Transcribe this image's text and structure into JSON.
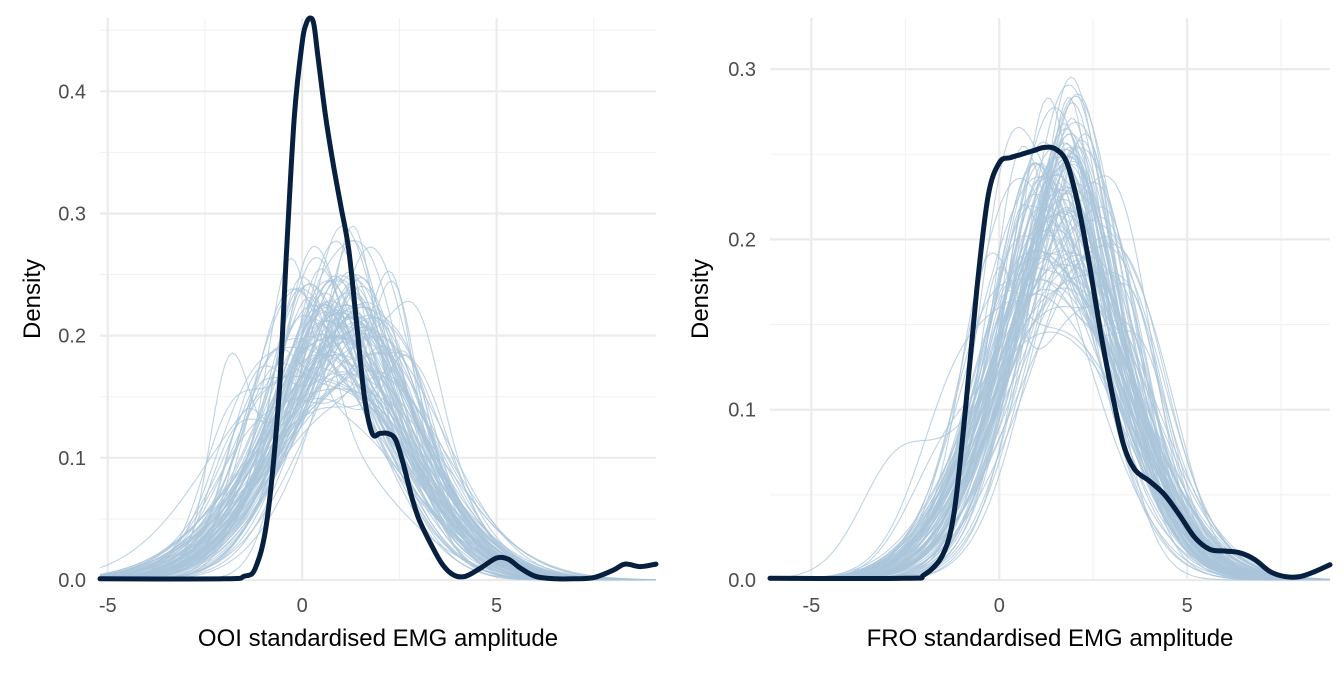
{
  "chart_data": [
    {
      "type": "line",
      "title": "",
      "xlabel": "OOI standardised EMG amplitude",
      "ylabel": "Density",
      "xlim": [
        -5.2,
        9.1
      ],
      "ylim": [
        0,
        0.46
      ],
      "x_ticks": [
        -5,
        0,
        5
      ],
      "x_tick_labels": [
        "-5",
        "0",
        "5"
      ],
      "y_ticks": [
        0,
        0.1,
        0.2,
        0.3,
        0.4
      ],
      "y_tick_labels": [
        "0.0",
        "0.1",
        "0.2",
        "0.3",
        "0.4"
      ],
      "grid": true,
      "legend": "none",
      "colors": {
        "observed": "#08203f",
        "replicates": "#a9c4da"
      },
      "replicates": {
        "count": 100,
        "mean_mu": 1.0,
        "mean_sd": 1.85,
        "mu_spread": 0.35,
        "sd_spread": 0.2
      },
      "observed": {
        "x": [
          -5.2,
          -2.0,
          -1.5,
          -1.2,
          -0.9,
          -0.6,
          -0.4,
          -0.2,
          0.0,
          0.1,
          0.2,
          0.3,
          0.4,
          0.6,
          0.8,
          1.0,
          1.2,
          1.4,
          1.6,
          1.8,
          2.0,
          2.2,
          2.4,
          2.6,
          2.8,
          3.0,
          3.3,
          3.6,
          3.9,
          4.2,
          4.6,
          5.0,
          5.3,
          5.6,
          6.0,
          6.5,
          7.0,
          7.5,
          8.0,
          8.3,
          8.7,
          9.1
        ],
        "y": [
          0.001,
          0.001,
          0.003,
          0.01,
          0.05,
          0.15,
          0.27,
          0.38,
          0.44,
          0.455,
          0.46,
          0.455,
          0.43,
          0.38,
          0.34,
          0.305,
          0.27,
          0.21,
          0.15,
          0.12,
          0.12,
          0.12,
          0.115,
          0.095,
          0.07,
          0.05,
          0.03,
          0.013,
          0.004,
          0.003,
          0.01,
          0.018,
          0.017,
          0.01,
          0.003,
          0.001,
          0.001,
          0.002,
          0.008,
          0.013,
          0.011,
          0.013
        ]
      }
    },
    {
      "type": "line",
      "title": "",
      "xlabel": "FRO standardised EMG amplitude",
      "ylabel": "Density",
      "xlim": [
        -6.1,
        8.8
      ],
      "ylim": [
        0,
        0.33
      ],
      "x_ticks": [
        -5,
        0,
        5
      ],
      "x_tick_labels": [
        "-5",
        "0",
        "5"
      ],
      "y_ticks": [
        0,
        0.1,
        0.2,
        0.3
      ],
      "y_tick_labels": [
        "0.0",
        "0.1",
        "0.2",
        "0.3"
      ],
      "grid": true,
      "legend": "none",
      "colors": {
        "observed": "#08203f",
        "replicates": "#a9c4da"
      },
      "replicates": {
        "count": 100,
        "mean_mu": 1.6,
        "mean_sd": 1.75,
        "mu_spread": 0.3,
        "sd_spread": 0.18
      },
      "observed": {
        "x": [
          -6.1,
          -2.5,
          -2.0,
          -1.5,
          -1.2,
          -0.9,
          -0.6,
          -0.3,
          0.0,
          0.3,
          0.6,
          0.9,
          1.2,
          1.5,
          1.8,
          2.1,
          2.4,
          2.7,
          3.0,
          3.3,
          3.6,
          4.0,
          4.4,
          4.8,
          5.2,
          5.6,
          6.0,
          6.4,
          6.8,
          7.2,
          7.6,
          8.0,
          8.4,
          8.8
        ],
        "y": [
          0.001,
          0.001,
          0.003,
          0.015,
          0.04,
          0.1,
          0.17,
          0.225,
          0.245,
          0.248,
          0.25,
          0.252,
          0.254,
          0.253,
          0.245,
          0.22,
          0.185,
          0.145,
          0.11,
          0.08,
          0.065,
          0.058,
          0.05,
          0.038,
          0.025,
          0.018,
          0.017,
          0.016,
          0.012,
          0.005,
          0.002,
          0.002,
          0.005,
          0.009
        ]
      }
    }
  ]
}
